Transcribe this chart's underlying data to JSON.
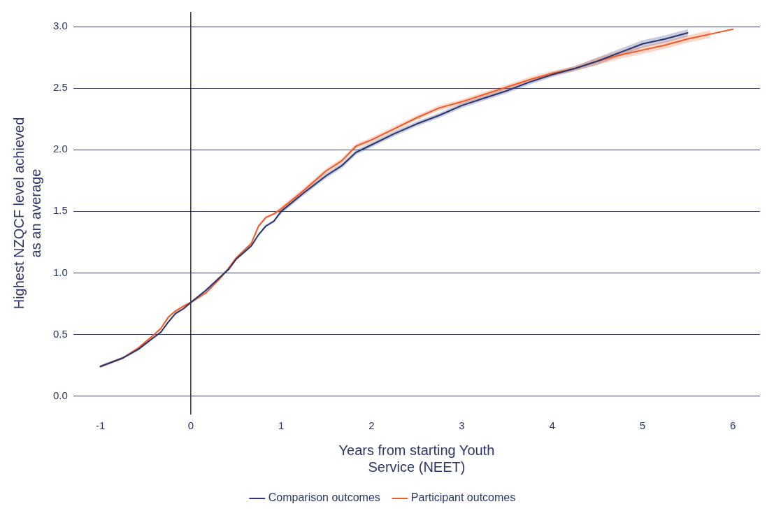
{
  "chart_data": {
    "type": "line",
    "xlabel": "Years from starting Youth Service (NEET)",
    "ylabel": "Highest NZQCF level achieved as an average",
    "xlim": [
      -1.3,
      6.3
    ],
    "xticks": [
      -1,
      0,
      1,
      2,
      3,
      4,
      5,
      6
    ],
    "ylim": [
      -0.15,
      3.12
    ],
    "yticks": [
      {
        "value": 0,
        "label": "0.0"
      },
      {
        "value": 0.5,
        "label": "0.5"
      },
      {
        "value": 1,
        "label": "1.0"
      },
      {
        "value": 1.5,
        "label": "1.5"
      },
      {
        "value": 2,
        "label": "2.0"
      },
      {
        "value": 2.5,
        "label": "2.5"
      },
      {
        "value": 3,
        "label": "3.0"
      }
    ],
    "grid": "y",
    "legend": "bottom",
    "marker": "none",
    "line_style": "solid",
    "ref_lines": [
      {
        "axis": "x",
        "value": 0,
        "color": "#000000"
      }
    ],
    "series": [
      {
        "name": "Comparison outcomes",
        "color": "#283570",
        "x": [
          -1,
          -0.75,
          -0.58,
          -0.42,
          -0.33,
          -0.25,
          -0.17,
          -0.08,
          0,
          0.17,
          0.33,
          0.42,
          0.5,
          0.67,
          0.75,
          0.83,
          0.92,
          1,
          1.25,
          1.5,
          1.67,
          1.83,
          2,
          2.25,
          2.5,
          2.75,
          3,
          3.25,
          3.5,
          3.75,
          4,
          4.25,
          4.5,
          4.75,
          5,
          5.25,
          5.5
        ],
        "values": [
          0.24,
          0.31,
          0.38,
          0.47,
          0.52,
          0.6,
          0.67,
          0.71,
          0.76,
          0.86,
          0.97,
          1.03,
          1.11,
          1.22,
          1.31,
          1.38,
          1.42,
          1.5,
          1.65,
          1.79,
          1.87,
          1.98,
          2.04,
          2.13,
          2.21,
          2.28,
          2.36,
          2.42,
          2.48,
          2.55,
          2.61,
          2.66,
          2.72,
          2.79,
          2.86,
          2.9,
          2.95
        ],
        "lower": [
          0.23,
          0.3,
          0.37,
          0.46,
          0.51,
          0.59,
          0.66,
          0.7,
          0.75,
          0.85,
          0.96,
          1.02,
          1.1,
          1.21,
          1.3,
          1.37,
          1.41,
          1.48,
          1.63,
          1.77,
          1.85,
          1.96,
          2.02,
          2.11,
          2.19,
          2.26,
          2.34,
          2.4,
          2.46,
          2.53,
          2.59,
          2.64,
          2.69,
          2.76,
          2.83,
          2.87,
          2.92
        ],
        "upper": [
          0.25,
          0.32,
          0.39,
          0.48,
          0.53,
          0.61,
          0.68,
          0.72,
          0.77,
          0.87,
          0.98,
          1.04,
          1.12,
          1.23,
          1.32,
          1.39,
          1.43,
          1.52,
          1.67,
          1.81,
          1.89,
          2.0,
          2.06,
          2.15,
          2.23,
          2.3,
          2.38,
          2.44,
          2.5,
          2.57,
          2.63,
          2.68,
          2.75,
          2.82,
          2.89,
          2.93,
          2.98
        ]
      },
      {
        "name": "Participant outcomes",
        "color": "#f05a28",
        "x": [
          -1,
          -0.75,
          -0.58,
          -0.42,
          -0.33,
          -0.25,
          -0.17,
          -0.08,
          0,
          0.17,
          0.33,
          0.42,
          0.5,
          0.67,
          0.75,
          0.83,
          0.92,
          1,
          1.25,
          1.5,
          1.67,
          1.83,
          2,
          2.25,
          2.5,
          2.75,
          3,
          3.25,
          3.5,
          3.75,
          4,
          4.25,
          4.5,
          4.75,
          5,
          5.25,
          5.5,
          5.75,
          6
        ],
        "values": [
          0.24,
          0.31,
          0.39,
          0.49,
          0.55,
          0.64,
          0.69,
          0.73,
          0.76,
          0.84,
          0.96,
          1.04,
          1.12,
          1.24,
          1.38,
          1.45,
          1.48,
          1.52,
          1.67,
          1.83,
          1.91,
          2.03,
          2.08,
          2.17,
          2.26,
          2.34,
          2.39,
          2.45,
          2.51,
          2.57,
          2.62,
          2.66,
          2.72,
          2.77,
          2.81,
          2.85,
          2.9,
          2.94,
          2.98
        ],
        "lower": [
          0.23,
          0.3,
          0.38,
          0.48,
          0.54,
          0.63,
          0.68,
          0.72,
          0.75,
          0.83,
          0.95,
          1.03,
          1.11,
          1.23,
          1.37,
          1.44,
          1.47,
          1.5,
          1.65,
          1.81,
          1.89,
          2.01,
          2.06,
          2.15,
          2.24,
          2.32,
          2.37,
          2.43,
          2.49,
          2.55,
          2.6,
          2.64,
          2.69,
          2.74,
          2.78,
          2.82,
          2.87,
          2.91,
          null
        ],
        "upper": [
          0.25,
          0.32,
          0.4,
          0.5,
          0.56,
          0.65,
          0.7,
          0.74,
          0.77,
          0.85,
          0.97,
          1.05,
          1.13,
          1.25,
          1.39,
          1.46,
          1.49,
          1.54,
          1.69,
          1.85,
          1.93,
          2.05,
          2.1,
          2.19,
          2.28,
          2.36,
          2.41,
          2.47,
          2.53,
          2.59,
          2.64,
          2.68,
          2.75,
          2.8,
          2.84,
          2.88,
          2.93,
          2.97,
          null
        ]
      }
    ]
  }
}
